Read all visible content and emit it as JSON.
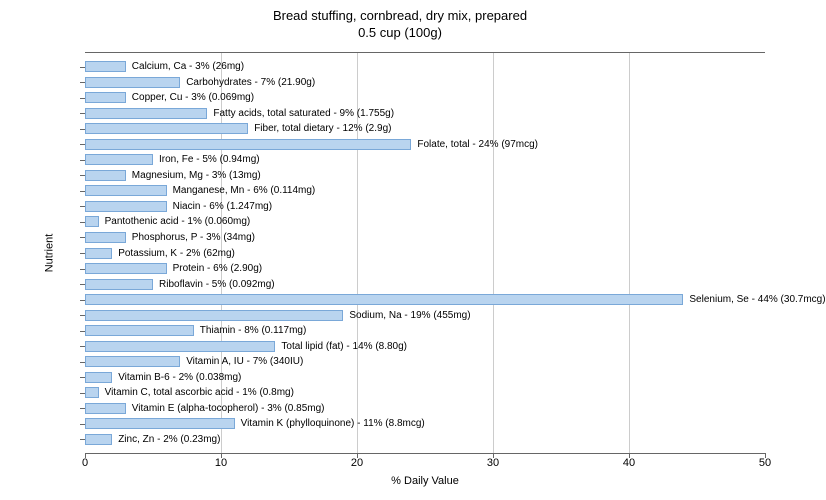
{
  "chart": {
    "type": "bar-horizontal",
    "title_line1": "Bread stuffing, cornbread, dry mix, prepared",
    "title_line2": "0.5 cup (100g)",
    "title_fontsize": 13,
    "x_axis_label": "% Daily Value",
    "y_axis_label": "Nutrient",
    "axis_label_fontsize": 11,
    "xlim": [
      0,
      50
    ],
    "xticks": [
      0,
      10,
      20,
      30,
      40,
      50
    ],
    "xtick_labels": [
      "0",
      "10",
      "20",
      "30",
      "40",
      "50"
    ],
    "bar_fill_color": "#b9d4ef",
    "bar_border_color": "#7aa8d8",
    "background_color": "#ffffff",
    "grid_color": "#cccccc",
    "axis_color": "#666666",
    "bar_label_fontsize": 10,
    "tick_fontsize": 11,
    "nutrients": [
      {
        "label": "Calcium, Ca - 3% (26mg)",
        "value": 3
      },
      {
        "label": "Carbohydrates - 7% (21.90g)",
        "value": 7
      },
      {
        "label": "Copper, Cu - 3% (0.069mg)",
        "value": 3
      },
      {
        "label": "Fatty acids, total saturated - 9% (1.755g)",
        "value": 9
      },
      {
        "label": "Fiber, total dietary - 12% (2.9g)",
        "value": 12
      },
      {
        "label": "Folate, total - 24% (97mcg)",
        "value": 24
      },
      {
        "label": "Iron, Fe - 5% (0.94mg)",
        "value": 5
      },
      {
        "label": "Magnesium, Mg - 3% (13mg)",
        "value": 3
      },
      {
        "label": "Manganese, Mn - 6% (0.114mg)",
        "value": 6
      },
      {
        "label": "Niacin - 6% (1.247mg)",
        "value": 6
      },
      {
        "label": "Pantothenic acid - 1% (0.060mg)",
        "value": 1
      },
      {
        "label": "Phosphorus, P - 3% (34mg)",
        "value": 3
      },
      {
        "label": "Potassium, K - 2% (62mg)",
        "value": 2
      },
      {
        "label": "Protein - 6% (2.90g)",
        "value": 6
      },
      {
        "label": "Riboflavin - 5% (0.092mg)",
        "value": 5
      },
      {
        "label": "Selenium, Se - 44% (30.7mcg)",
        "value": 44
      },
      {
        "label": "Sodium, Na - 19% (455mg)",
        "value": 19
      },
      {
        "label": "Thiamin - 8% (0.117mg)",
        "value": 8
      },
      {
        "label": "Total lipid (fat) - 14% (8.80g)",
        "value": 14
      },
      {
        "label": "Vitamin A, IU - 7% (340IU)",
        "value": 7
      },
      {
        "label": "Vitamin B-6 - 2% (0.038mg)",
        "value": 2
      },
      {
        "label": "Vitamin C, total ascorbic acid - 1% (0.8mg)",
        "value": 1
      },
      {
        "label": "Vitamin E (alpha-tocopherol) - 3% (0.85mg)",
        "value": 3
      },
      {
        "label": "Vitamin K (phylloquinone) - 11% (8.8mcg)",
        "value": 11
      },
      {
        "label": "Zinc, Zn - 2% (0.23mg)",
        "value": 2
      }
    ]
  }
}
